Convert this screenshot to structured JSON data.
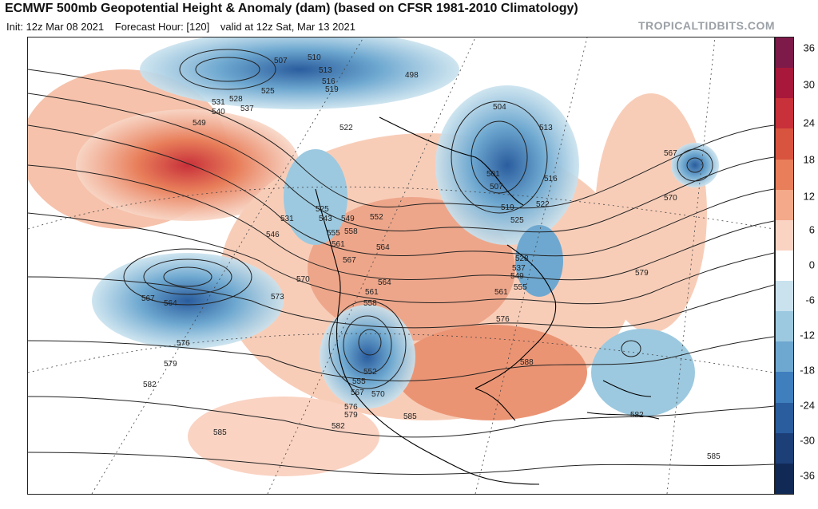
{
  "header": {
    "title": "ECMWF 500mb Geopotential Height & Anomaly (dam) (based on CFSR 1981-2010 Climatology)",
    "init": "Init: 12z Mar 08 2021",
    "forecast_hour": "Forecast Hour: [120]",
    "valid": "valid at 12z Sat, Mar 13 2021",
    "brand": "TROPICALTIDBITS.COM"
  },
  "colorbar": {
    "ticks": [
      "36",
      "30",
      "24",
      "18",
      "12",
      "6",
      "0",
      "-6",
      "-12",
      "-18",
      "-24",
      "-30",
      "-36"
    ],
    "colors": [
      "#7d1a4a",
      "#a8183a",
      "#c8303a",
      "#d9543f",
      "#e87e5a",
      "#f3a98a",
      "#fad3c3",
      "#ffffff",
      "#c9e2ee",
      "#9cc9e0",
      "#6ea8d0",
      "#3f7fbd",
      "#2a5d9e",
      "#1c3f78",
      "#112a55"
    ]
  },
  "map": {
    "contour_labels": [
      "507",
      "510",
      "513",
      "516",
      "519",
      "498",
      "504",
      "513",
      "525",
      "528",
      "531",
      "537",
      "540",
      "549",
      "522",
      "501",
      "507",
      "516",
      "519",
      "522",
      "525",
      "528",
      "537",
      "549",
      "555",
      "561",
      "525",
      "531",
      "546",
      "543",
      "549",
      "552",
      "555",
      "558",
      "561",
      "564",
      "567",
      "570",
      "573",
      "564",
      "561",
      "558",
      "552",
      "555",
      "567",
      "570",
      "576",
      "579",
      "582",
      "585",
      "564",
      "567",
      "576",
      "588",
      "579",
      "567",
      "570",
      "576",
      "579",
      "582",
      "585",
      "582",
      "585"
    ]
  }
}
